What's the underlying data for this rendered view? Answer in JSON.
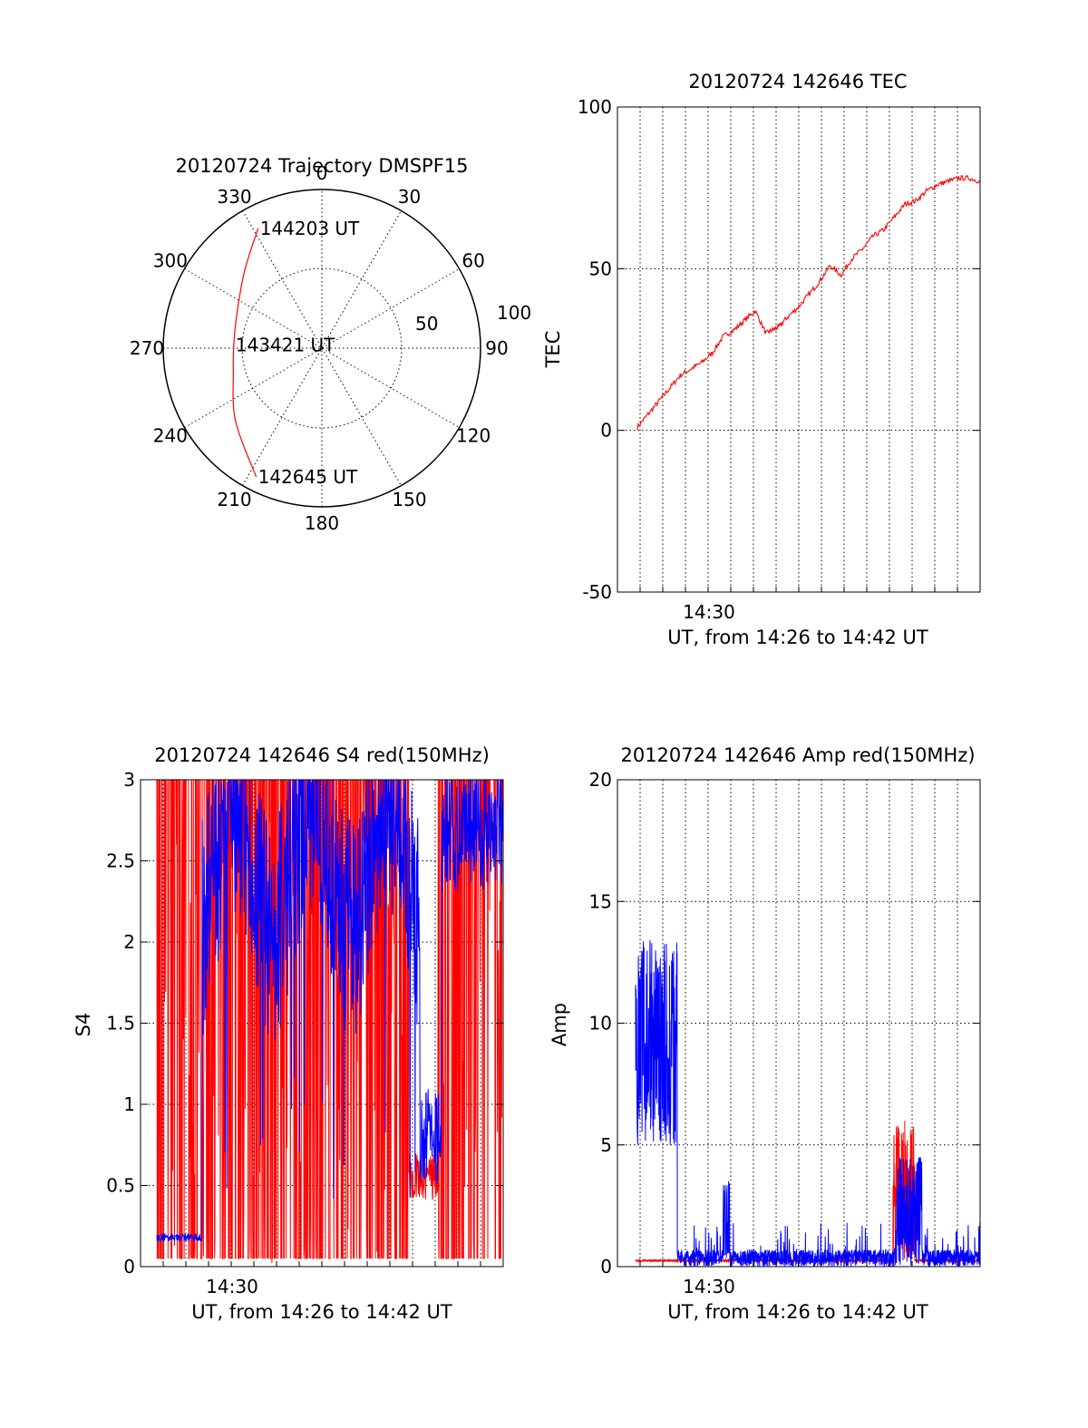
{
  "chart_data": [
    {
      "type": "polar",
      "title": "20120724 Trajectory DMSPF15",
      "angle_labels": [
        "0",
        "30",
        "60",
        "90",
        "120",
        "150",
        "180",
        "210",
        "240",
        "270",
        "300",
        "330"
      ],
      "radial_labels": [
        "50",
        "100"
      ],
      "rlim": [
        0,
        100
      ],
      "grid": true,
      "trajectory_color": "#ff0000",
      "trajectory": [
        {
          "az": 207,
          "el": 8,
          "label": "142645 UT"
        },
        {
          "az": 230,
          "el": 26
        },
        {
          "az": 255,
          "el": 38
        },
        {
          "az": 272,
          "el": 40,
          "label": "143421 UT"
        },
        {
          "az": 292,
          "el": 38
        },
        {
          "az": 315,
          "el": 28
        },
        {
          "az": 332,
          "el": 13,
          "label": "144203 UT"
        }
      ]
    },
    {
      "type": "line",
      "title": "20120724 142646 TEC",
      "ylabel": "TEC",
      "xlabel": "UT, from 14:26 to 14:42 UT",
      "xtick_label": "14:30",
      "ylim": [
        -50,
        100
      ],
      "yticks": [
        "100",
        "50",
        "0",
        "-50"
      ],
      "grid": true,
      "series": [
        {
          "color": "#ff0000",
          "x": [
            0.0,
            0.5,
            1.0,
            1.5,
            2.0,
            2.5,
            3.0,
            3.5,
            4.0,
            4.5,
            5.0,
            5.5,
            6.0,
            6.3,
            6.6,
            7.0,
            7.5,
            8.0,
            8.5,
            9.0,
            9.5,
            10.0,
            10.5,
            11.0,
            11.5,
            12.0,
            12.5,
            13.0,
            13.5,
            14.0,
            14.5,
            15.0,
            15.5,
            16.0
          ],
          "y": [
            1,
            5,
            9,
            13,
            17,
            19,
            21,
            24,
            29,
            31,
            34,
            37,
            30,
            31,
            32,
            35,
            38,
            42,
            46,
            51,
            48,
            53,
            56,
            60,
            62,
            66,
            70,
            71,
            74,
            76,
            77,
            78,
            78,
            77
          ]
        }
      ]
    },
    {
      "type": "line",
      "title": "20120724 142646 S4 red(150MHz)",
      "ylabel": "S4",
      "xlabel": "UT, from 14:26 to 14:42 UT",
      "xtick_label": "14:30",
      "ylim": [
        0,
        3
      ],
      "yticks": [
        "3",
        "2.5",
        "2",
        "1.5",
        "1",
        "0.5",
        "0"
      ],
      "grid": true,
      "series": [
        {
          "color": "#ff0000"
        },
        {
          "color": "#0000ff"
        }
      ]
    },
    {
      "type": "line",
      "title": "20120724 142646 Amp red(150MHz)",
      "ylabel": "Amp",
      "xlabel": "UT, from 14:26 to 14:42 UT",
      "xtick_label": "14:30",
      "ylim": [
        0,
        20
      ],
      "yticks": [
        "20",
        "15",
        "10",
        "5",
        "0"
      ],
      "grid": true,
      "series": [
        {
          "color": "#ff0000"
        },
        {
          "color": "#0000ff"
        }
      ]
    }
  ]
}
